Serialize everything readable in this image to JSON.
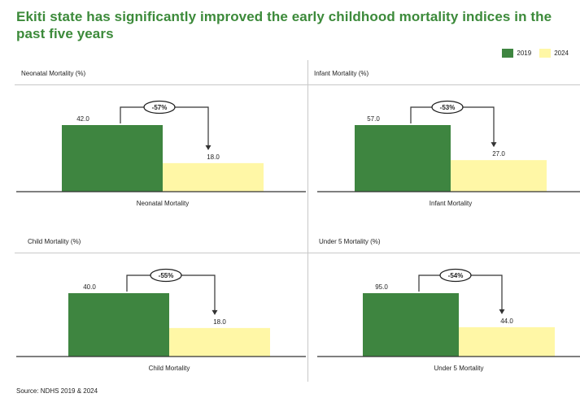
{
  "title": "Ekiti state has significantly improved the early childhood mortality indices in the past five years",
  "legend": {
    "items": [
      {
        "label": "2019",
        "color": "#3e8540"
      },
      {
        "label": "2024",
        "color": "#fff7a6"
      }
    ]
  },
  "source": "Source: NDHS 2019 & 2024",
  "colors": {
    "y2019": "#3e8540",
    "y2024": "#fff7a6",
    "title": "#3c8a3a"
  },
  "chart_data": [
    {
      "type": "bar",
      "title": "Neonatal Mortality (%)",
      "categories": [
        "Neonatal Mortality"
      ],
      "series": [
        {
          "name": "2019",
          "values": [
            42.0
          ]
        },
        {
          "name": "2024",
          "values": [
            18.0
          ]
        }
      ],
      "value_labels": [
        "42.0",
        "18.0"
      ],
      "change_label": "-57%"
    },
    {
      "type": "bar",
      "title": "Infant Mortality (%)",
      "categories": [
        "Infant Mortality"
      ],
      "series": [
        {
          "name": "2019",
          "values": [
            57.0
          ]
        },
        {
          "name": "2024",
          "values": [
            27.0
          ]
        }
      ],
      "value_labels": [
        "57.0",
        "27.0"
      ],
      "change_label": "-53%"
    },
    {
      "type": "bar",
      "title": "Child Mortality (%)",
      "categories": [
        "Child Mortality"
      ],
      "series": [
        {
          "name": "2019",
          "values": [
            40.0
          ]
        },
        {
          "name": "2024",
          "values": [
            18.0
          ]
        }
      ],
      "value_labels": [
        "40.0",
        "18.0"
      ],
      "change_label": "-55%"
    },
    {
      "type": "bar",
      "title": "Under 5 Mortality (%)",
      "categories": [
        "Under 5 Mortality"
      ],
      "series": [
        {
          "name": "2019",
          "values": [
            95.0
          ]
        },
        {
          "name": "2024",
          "values": [
            44.0
          ]
        }
      ],
      "value_labels": [
        "95.0",
        "44.0"
      ],
      "change_label": "-54%"
    }
  ]
}
